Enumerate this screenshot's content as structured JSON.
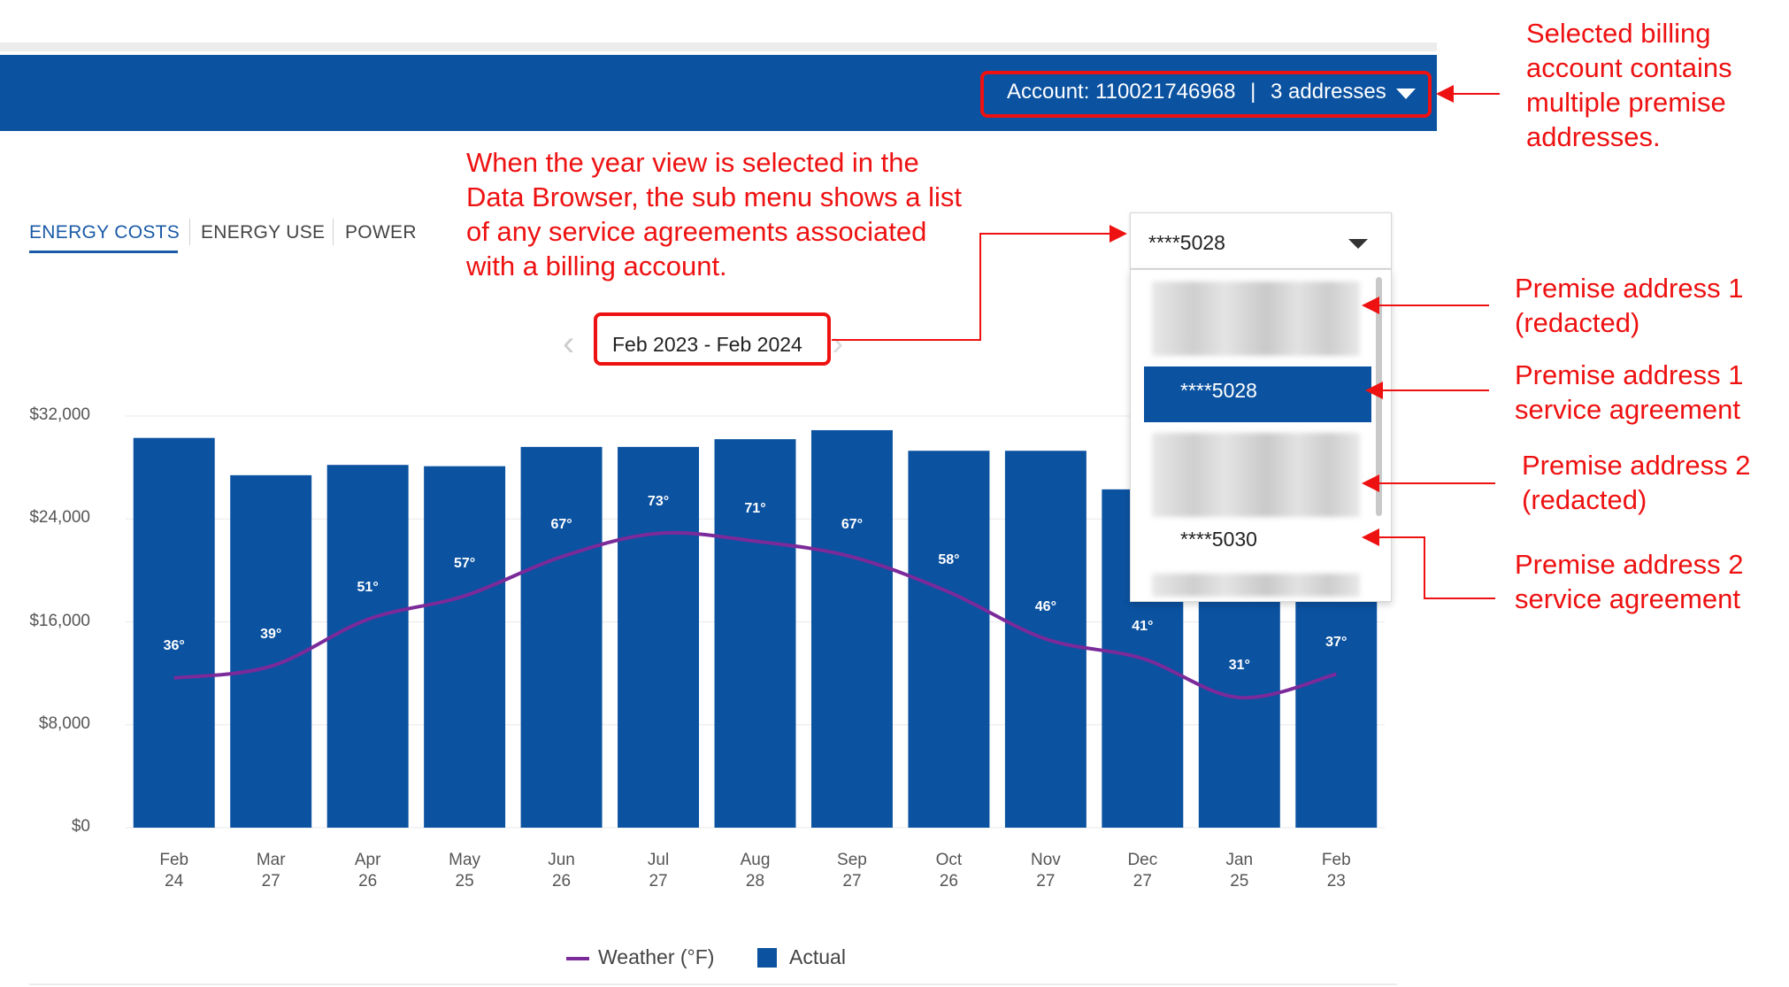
{
  "header": {
    "account_label": "Account: 110021746968",
    "separator": "|",
    "addresses_label": "3 addresses"
  },
  "tabs": [
    {
      "label": "ENERGY COSTS",
      "active": true
    },
    {
      "label": "ENERGY USE",
      "active": false
    },
    {
      "label": "POWER",
      "active": false
    }
  ],
  "period": {
    "label": "Feb 2023 - Feb 2024"
  },
  "service_agreement_dropdown": {
    "selected": "****5028",
    "options": [
      {
        "type": "premise-address",
        "label": "",
        "redacted": true
      },
      {
        "type": "service-agreement",
        "label": "****5028",
        "selected": true
      },
      {
        "type": "premise-address",
        "label": "",
        "redacted": true
      },
      {
        "type": "service-agreement",
        "label": "****5030",
        "selected": false
      },
      {
        "type": "premise-address",
        "label": "",
        "redacted": true
      }
    ]
  },
  "annotations": {
    "account": "Selected billing account contains multiple premise addresses.",
    "submenu": "When the year view is selected in the Data Browser, the sub menu shows a list of any service agreements associated with a billing account.",
    "addr1": "Premise address 1 (redacted)",
    "addr1_sa": "Premise address 1 service agreement",
    "addr2": "Premise address 2 (redacted)",
    "addr2_sa": "Premise address 2 service agreement"
  },
  "chart_data": {
    "type": "bar",
    "categories": [
      "Feb 24",
      "Mar 27",
      "Apr 26",
      "May 25",
      "Jun 26",
      "Jul 27",
      "Aug 28",
      "Sep 27",
      "Oct 26",
      "Nov 27",
      "Dec 27",
      "Jan 25",
      "Feb 23"
    ],
    "x_tick_labels": [
      [
        "Feb",
        "24"
      ],
      [
        "Mar",
        "27"
      ],
      [
        "Apr",
        "26"
      ],
      [
        "May",
        "25"
      ],
      [
        "Jun",
        "26"
      ],
      [
        "Jul",
        "27"
      ],
      [
        "Aug",
        "28"
      ],
      [
        "Sep",
        "27"
      ],
      [
        "Oct",
        "26"
      ],
      [
        "Nov",
        "27"
      ],
      [
        "Dec",
        "27"
      ],
      [
        "Jan",
        "25"
      ],
      [
        "Feb",
        "23"
      ]
    ],
    "y_ticks": [
      {
        "value": 0,
        "label": "$0"
      },
      {
        "value": 8000,
        "label": "$8,000"
      },
      {
        "value": 16000,
        "label": "$16,000"
      },
      {
        "value": 24000,
        "label": "$24,000"
      },
      {
        "value": 32000,
        "label": "$32,000"
      }
    ],
    "ylim": [
      0,
      32000
    ],
    "temp_range": [
      0,
      100
    ],
    "grid": true,
    "series": [
      {
        "name": "Actual",
        "color": "#0b52a0",
        "values": [
          30300,
          27400,
          28200,
          28100,
          29600,
          29600,
          30200,
          30900,
          29300,
          29300,
          26300,
          28500,
          29000
        ]
      },
      {
        "name": "Weather (°F)",
        "color": "#7b2a9a",
        "values": [
          36,
          39,
          51,
          57,
          67,
          73,
          71,
          67,
          58,
          46,
          41,
          31,
          37
        ],
        "labels": [
          "36°",
          "39°",
          "51°",
          "57°",
          "67°",
          "73°",
          "71°",
          "67°",
          "58°",
          "46°",
          "41°",
          "31°",
          "37°"
        ]
      }
    ],
    "legend": [
      {
        "name": "Weather (°F)",
        "color": "#7b2a9a",
        "shape": "line"
      },
      {
        "name": "Actual",
        "color": "#0b52a0",
        "shape": "square"
      }
    ],
    "legend_position": "bottom"
  }
}
